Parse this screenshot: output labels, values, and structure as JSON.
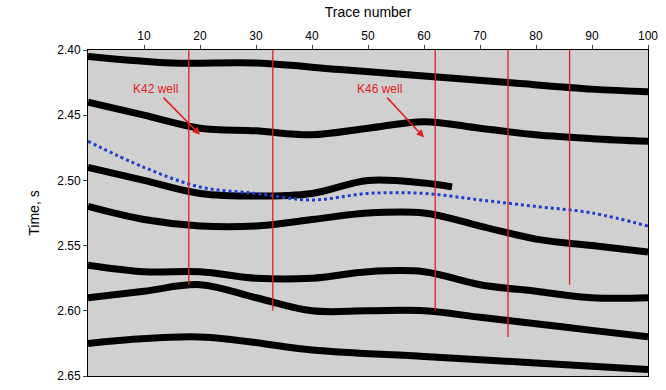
{
  "chart_data": {
    "type": "line",
    "xlabel": "Trace number",
    "ylabel": "Time, s",
    "xlim": [
      0,
      100
    ],
    "xticks": [
      10,
      20,
      30,
      40,
      50,
      60,
      70,
      80,
      90,
      100
    ],
    "ylim": [
      2.4,
      2.65
    ],
    "yticks": [
      {
        "value": 2.4,
        "label": "2.40"
      },
      {
        "value": 2.45,
        "label": "2.45"
      },
      {
        "value": 2.5,
        "label": "2.50"
      },
      {
        "value": 2.55,
        "label": "2.55"
      },
      {
        "value": 2.6,
        "label": "2.60"
      },
      {
        "value": 2.65,
        "label": "2.65"
      }
    ],
    "grid": false,
    "tick_labels": true,
    "series": [
      {
        "color": "#000000",
        "line_style": "thick",
        "x": [
          0,
          15,
          30,
          45,
          60,
          75,
          90,
          100
        ],
        "values": [
          2.405,
          2.41,
          2.41,
          2.415,
          2.42,
          2.425,
          2.43,
          2.432
        ]
      },
      {
        "color": "#000000",
        "line_style": "thick",
        "x": [
          0,
          10,
          20,
          30,
          40,
          50,
          60,
          70,
          80,
          90,
          100
        ],
        "values": [
          2.44,
          2.45,
          2.46,
          2.462,
          2.465,
          2.46,
          2.455,
          2.46,
          2.465,
          2.468,
          2.47
        ]
      },
      {
        "color": "#000000",
        "line_style": "thick",
        "x": [
          0,
          10,
          20,
          30,
          40,
          50,
          60,
          65
        ],
        "values": [
          2.49,
          2.5,
          2.51,
          2.512,
          2.51,
          2.5,
          2.502,
          2.505
        ]
      },
      {
        "color": "#000000",
        "line_style": "thick",
        "x": [
          0,
          10,
          20,
          30,
          40,
          50,
          60,
          70,
          80,
          90,
          100
        ],
        "values": [
          2.52,
          2.53,
          2.535,
          2.535,
          2.53,
          2.525,
          2.525,
          2.535,
          2.545,
          2.55,
          2.555
        ]
      },
      {
        "color": "#000000",
        "line_style": "thick",
        "x": [
          0,
          10,
          20,
          30,
          40,
          50,
          60,
          70,
          80,
          90,
          100
        ],
        "values": [
          2.565,
          2.57,
          2.57,
          2.575,
          2.575,
          2.57,
          2.57,
          2.58,
          2.585,
          2.59,
          2.59
        ]
      },
      {
        "color": "#000000",
        "line_style": "thick",
        "x": [
          0,
          10,
          20,
          30,
          40,
          50,
          60,
          70,
          80,
          90,
          100
        ],
        "values": [
          2.59,
          2.585,
          2.58,
          2.59,
          2.6,
          2.6,
          2.6,
          2.605,
          2.61,
          2.615,
          2.62
        ]
      },
      {
        "color": "#000000",
        "line_style": "thick",
        "x": [
          0,
          20,
          40,
          60,
          80,
          100
        ],
        "values": [
          2.625,
          2.62,
          2.63,
          2.635,
          2.64,
          2.645
        ]
      },
      {
        "color": "#1f3fd0",
        "line_style": "dot",
        "x": [
          0,
          10,
          20,
          30,
          40,
          50,
          60,
          70,
          80,
          90,
          100
        ],
        "values": [
          2.47,
          2.49,
          2.505,
          2.51,
          2.515,
          2.51,
          2.51,
          2.515,
          2.52,
          2.525,
          2.535
        ]
      },
      {
        "color": "#e02020",
        "line_style": "solid",
        "x": [
          18,
          18
        ],
        "values": [
          2.4,
          2.58
        ]
      },
      {
        "color": "#e02020",
        "line_style": "solid",
        "x": [
          33,
          33
        ],
        "values": [
          2.4,
          2.6
        ]
      },
      {
        "color": "#e02020",
        "line_style": "solid",
        "x": [
          62,
          62
        ],
        "values": [
          2.4,
          2.6
        ]
      },
      {
        "color": "#e02020",
        "line_style": "solid",
        "x": [
          75,
          75
        ],
        "values": [
          2.4,
          2.62
        ]
      },
      {
        "color": "#e02020",
        "line_style": "solid",
        "x": [
          86,
          86
        ],
        "values": [
          2.4,
          2.58
        ]
      }
    ],
    "annotations": [
      {
        "text": "K42 well",
        "color": "#e02020",
        "x": 20,
        "y": 2.465,
        "text_x": 12,
        "text_y": 2.43
      },
      {
        "text": "K46 well",
        "color": "#e02020",
        "x": 60,
        "y": 2.467,
        "text_x": 52,
        "text_y": 2.43
      }
    ]
  }
}
